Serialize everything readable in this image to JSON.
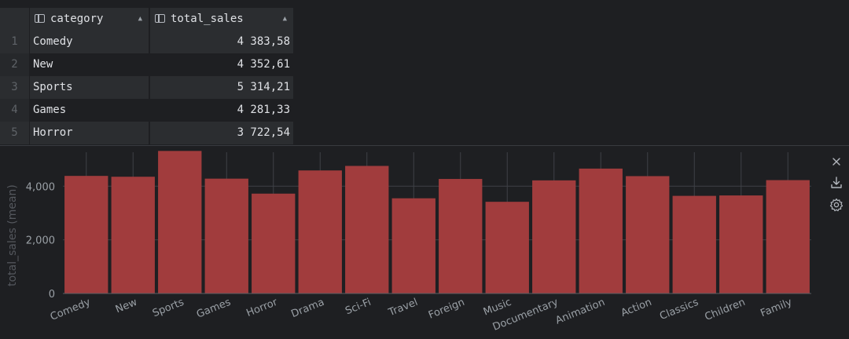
{
  "table": {
    "columns": [
      "category",
      "total_sales"
    ],
    "rows": [
      {
        "n": "1",
        "category": "Comedy",
        "total_sales": "4 383,58"
      },
      {
        "n": "2",
        "category": "New",
        "total_sales": "4 352,61"
      },
      {
        "n": "3",
        "category": "Sports",
        "total_sales": "5 314,21"
      },
      {
        "n": "4",
        "category": "Games",
        "total_sales": "4 281,33"
      },
      {
        "n": "5",
        "category": "Horror",
        "total_sales": "3 722,54"
      }
    ]
  },
  "toolbar": {
    "close_icon": "close-icon",
    "download_icon": "download-icon",
    "settings_icon": "gear-icon"
  },
  "chart_data": {
    "type": "bar",
    "ylabel": "total_sales (mean)",
    "xlabel": "",
    "ylim": [
      0,
      5500
    ],
    "y_ticks": [
      0,
      2000,
      4000
    ],
    "y_tick_labels": [
      "0",
      "2,000",
      "4,000"
    ],
    "grid": true,
    "bar_color": "#a13c3d",
    "categories": [
      "Comedy",
      "New",
      "Sports",
      "Games",
      "Horror",
      "Drama",
      "Sci-Fi",
      "Travel",
      "Foreign",
      "Music",
      "Documentary",
      "Animation",
      "Action",
      "Classics",
      "Children",
      "Family"
    ],
    "values": [
      4383.58,
      4352.61,
      5314.21,
      4281.33,
      3722.54,
      4587,
      4756,
      3549,
      4270,
      3418,
      4217,
      4656,
      4375,
      3640,
      3655,
      4226
    ]
  }
}
